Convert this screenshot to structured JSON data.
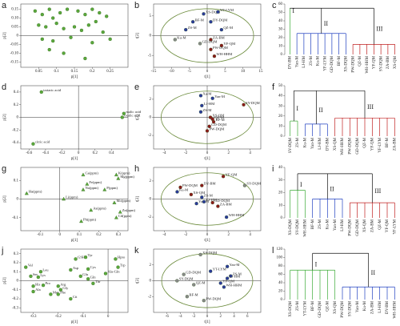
{
  "chart_data": [
    {
      "type": "scatter",
      "panel": "a",
      "xlabel": "p[1]",
      "ylabel": "p[2]",
      "xlim": [
        0,
        0.3
      ],
      "ylim": [
        -0.18,
        0.18
      ],
      "xticks": [
        0.05,
        0.1,
        0.15,
        0.2,
        0.25
      ],
      "yticks": [
        {
          "value": 0.15,
          "label": "0.15"
        },
        {
          "value": 0.1,
          "label": "0.10"
        },
        {
          "value": 0.05,
          "label": "0.05"
        },
        0,
        {
          "value": -0.05,
          "label": "-0.05"
        },
        {
          "value": -0.1,
          "label": "-0.10"
        },
        {
          "value": -0.15,
          "label": "-0.15"
        }
      ],
      "zero_lines": true,
      "marker": "circle",
      "color": "#5aa83c",
      "x": [
        0.04,
        0.06,
        0.08,
        0.09,
        0.11,
        0.13,
        0.16,
        0.18,
        0.2,
        0.22,
        0.24,
        0.05,
        0.07,
        0.1,
        0.12,
        0.15,
        0.17,
        0.19,
        0.21,
        0.23,
        0.06,
        0.09,
        0.14,
        0.2,
        0.25,
        0.08,
        0.12,
        0.18
      ],
      "values": [
        0.14,
        0.12,
        0.15,
        0.1,
        0.13,
        0.15,
        0.14,
        0.12,
        0.15,
        0.13,
        0.11,
        0.06,
        0.05,
        0.07,
        0.04,
        0.05,
        0.03,
        0.06,
        0.08,
        0.02,
        -0.02,
        -0.03,
        -0.01,
        -0.04,
        -0.02,
        -0.08,
        -0.1,
        -0.13
      ]
    },
    {
      "type": "scatter",
      "panel": "b",
      "xlabel": "t[1]",
      "ylabel": "t[2]",
      "xlim": [
        -15,
        15
      ],
      "ylim": [
        -8,
        8
      ],
      "xticks": [
        -15,
        -10,
        -5,
        0,
        5,
        10,
        15
      ],
      "yticks": [
        5,
        0,
        -5
      ],
      "zero_lines": true,
      "marker": "circle",
      "ellipse_radii": [
        13,
        6.8
      ],
      "labels": [
        "XS-DQM",
        "YF-LYM",
        "BF-M",
        "DY-DQM",
        "ZS-M",
        "QZ-M",
        "Ku-M",
        "ZA-BM",
        "YF-QM",
        "PW-DQM",
        "WH-HHM",
        "GD-DQM"
      ],
      "x": [
        -1,
        3,
        -4,
        1,
        -6,
        4,
        -9,
        1,
        4,
        1,
        2,
        -2
      ],
      "values": [
        5.5,
        6,
        3.5,
        3.5,
        1.5,
        1.5,
        -1,
        -1,
        -2.5,
        -3.5,
        -5.2,
        -2
      ],
      "point_colors": [
        "#2b3a9a",
        "#2b3a9a",
        "#2b3a9a",
        "#2b3a9a",
        "#2b3a9a",
        "#2b3a9a",
        "#888888",
        "#8b1a1a",
        "#8b1a1a",
        "#8b1a1a",
        "#8b1a1a",
        "#888888"
      ]
    },
    {
      "type": "dendrogram",
      "panel": "c",
      "ylim": [
        0,
        60
      ],
      "yticks": [
        0,
        10,
        20,
        30,
        40,
        50,
        60
      ],
      "root_height": 55,
      "leaves": [
        "DY-BM",
        "Yan-M",
        "LJ-HM",
        "ZS-M",
        "Ku-M",
        "YF-LYM",
        "GD-DQM",
        "BF-M",
        "XS-DQM",
        "PW-DQM",
        "QZ-M",
        "WH-HHM",
        "YF-QM",
        "SY-DQM",
        "ZA-BM",
        "XS-QM"
      ],
      "clusters": [
        {
          "label": "I",
          "color": "#3aaa35",
          "start": 0,
          "end": 0,
          "inner_height": 55
        },
        {
          "label": "II",
          "color": "#2040c0",
          "start": 1,
          "end": 8,
          "inner_height": 25
        },
        {
          "label": "III",
          "color": "#c02020",
          "start": 9,
          "end": 15,
          "inner_height": 12
        }
      ]
    },
    {
      "type": "scatter",
      "panel": "d",
      "xlabel": "p[1]",
      "ylabel": "p[2]",
      "xlim": [
        -0.7,
        0.6
      ],
      "ylim": [
        -0.5,
        0.5
      ],
      "xticks": [
        -0.6,
        -0.4,
        -0.2,
        0,
        0.2,
        0.4
      ],
      "yticks": [
        0.4,
        0.2,
        0,
        -0.2,
        -0.4
      ],
      "zero_lines": true,
      "marker": "circle",
      "color": "#5aa83c",
      "labels": [
        "tartaric acid",
        "malic acid",
        "oxalic acid",
        "citric acid"
      ],
      "x": [
        -0.45,
        0.55,
        0.53,
        -0.55
      ],
      "values": [
        0.4,
        0.06,
        0.0,
        -0.42
      ]
    },
    {
      "type": "scatter",
      "panel": "e",
      "xlabel": "t[1]",
      "ylabel": "t[2]",
      "xlim": [
        -5,
        5
      ],
      "ylim": [
        -3.5,
        3.5
      ],
      "xticks": [
        -4,
        -2,
        0,
        2,
        4
      ],
      "yticks": [
        2,
        0,
        -2
      ],
      "zero_lines": true,
      "marker": "circle",
      "ellipse_radii": [
        4.3,
        2.9
      ],
      "labels": [
        "Xa-M",
        "Yan-M",
        "LJ-HM",
        "ZS-M",
        "SY-DQM",
        "XS-QM",
        "BF-M",
        "GD-DQM",
        "PW-DQM",
        "QZ-M"
      ],
      "x": [
        -0.6,
        0.5,
        -0.5,
        -0.6,
        3.4,
        0.3,
        0.6,
        0.2,
        0,
        0.5
      ],
      "values": [
        2.4,
        2.1,
        1.3,
        0.6,
        1.4,
        0,
        -0.5,
        -1,
        -1.5,
        -0.2
      ],
      "point_colors": [
        "#2b3a9a",
        "#2b3a9a",
        "#2b3a9a",
        "#2b3a9a",
        "#8b1a1a",
        "#8b1a1a",
        "#8b1a1a",
        "#8b1a1a",
        "#8b1a1a",
        "#8b1a1a"
      ]
    },
    {
      "type": "dendrogram",
      "panel": "f",
      "ylim": [
        0,
        50
      ],
      "yticks": [
        0,
        10,
        20,
        30,
        40,
        50
      ],
      "root_height": 45,
      "leaves": [
        "SY-DQM",
        "ZS-M",
        "Ku-M",
        "Yan-M",
        "LJ-HM",
        "DY-BM",
        "XS-QM",
        "WH-HHM",
        "PW-DQM",
        "GD-DQM",
        "QZ-M",
        "YF-QM",
        "YF-LYM",
        "BF-M",
        "ZA-BM"
      ],
      "clusters": [
        {
          "label": "I",
          "color": "#3aaa35",
          "start": 0,
          "end": 1,
          "inner_height": 15
        },
        {
          "label": "II",
          "color": "#2040c0",
          "start": 2,
          "end": 5,
          "inner_height": 12
        },
        {
          "label": "III",
          "color": "#c02020",
          "start": 6,
          "end": 14,
          "inner_height": 18
        }
      ]
    },
    {
      "type": "scatter",
      "panel": "g",
      "xlabel": "p[1]",
      "ylabel": "p[2]",
      "xlim": [
        -0.2,
        0.35
      ],
      "ylim": [
        -0.17,
        0.17
      ],
      "xticks": [
        -0.1,
        0,
        0.1,
        0.2,
        0.3
      ],
      "yticks": [
        0.1,
        0,
        -0.1
      ],
      "zero_lines": true,
      "marker": "triangle",
      "color": "#5aa83c",
      "labels": [
        "Ca(ppm)",
        "K(ppm)",
        "Mg(ppm)",
        "Fe(ppm)",
        "Na(ppm)",
        "P(ppm)",
        "Ha(ppm)",
        "Li(ppm)",
        "Mo(ppm)",
        "As(ppm)",
        "Zn(ppm)",
        "Cd(ppm)",
        "Pb(ppm)"
      ],
      "x": [
        0.12,
        0.29,
        0.3,
        0.14,
        0.12,
        0.23,
        -0.17,
        0.02,
        0.28,
        0.16,
        0.31,
        0.29,
        0.11
      ],
      "values": [
        0.13,
        0.13,
        0.11,
        0.08,
        0.05,
        0.05,
        0.03,
        0.0,
        -0.02,
        -0.06,
        -0.07,
        -0.1,
        -0.12
      ]
    },
    {
      "type": "scatter",
      "panel": "h",
      "xlabel": "t[1]",
      "ylabel": "t[2]",
      "xlim": [
        -5,
        5
      ],
      "ylim": [
        -3.5,
        3.5
      ],
      "xticks": [
        -4,
        -2,
        0,
        2,
        4
      ],
      "yticks": [
        2,
        0,
        -2
      ],
      "zero_lines": true,
      "marker": "circle",
      "ellipse_radii": [
        4.3,
        2.9
      ],
      "labels": [
        "YF-QM",
        "SY-DQM",
        "PW-DQM",
        "DY-BM",
        "XS-QM",
        "Ku-M",
        "ZS-M",
        "Yan-M",
        "LJ-HM",
        "GD-DQM",
        "ZA-BM",
        "WH-HHM"
      ],
      "x": [
        1.5,
        3.5,
        -2.5,
        -0.5,
        -1.5,
        -2.8,
        -0.5,
        -1,
        -0.3,
        0.5,
        1,
        1.8
      ],
      "values": [
        2.5,
        1.5,
        1.3,
        1.5,
        0.5,
        0.8,
        0.2,
        -0.5,
        -0.3,
        -0.4,
        -0.8,
        -2
      ],
      "point_colors": [
        "#8b1a1a",
        "#888888",
        "#8b1a1a",
        "#8b1a1a",
        "#8b1a1a",
        "#2b3a9a",
        "#2b3a9a",
        "#2b3a9a",
        "#2b3a9a",
        "#8b1a1a",
        "#8b1a1a",
        "#2b3a9a"
      ]
    },
    {
      "type": "dendrogram",
      "panel": "i",
      "ylim": [
        0,
        40
      ],
      "yticks": [
        0,
        10,
        20,
        30,
        40
      ],
      "root_height": 35,
      "leaves": [
        "XS-DQM",
        "SY-DQM",
        "WH-HHM",
        "BF-M",
        "ZS-M",
        "Ku-M",
        "Yan-M",
        "LJ-HM",
        "PW-DQM",
        "GD-DQM",
        "XS-QM",
        "ZA-BM",
        "QZ-M",
        "YF-QM",
        "YF-LYM"
      ],
      "clusters": [
        {
          "label": "I",
          "color": "#3aaa35",
          "start": 0,
          "end": 2,
          "inner_height": 22
        },
        {
          "label": "II",
          "color": "#2040c0",
          "start": 3,
          "end": 7,
          "inner_height": 15
        },
        {
          "label": "III",
          "color": "#c02020",
          "start": 8,
          "end": 14,
          "inner_height": 12
        }
      ]
    },
    {
      "type": "scatter",
      "panel": "j",
      "xlabel": "p[1]",
      "ylabel": "p[2]",
      "xlim": [
        -0.35,
        0.08
      ],
      "ylim": [
        -0.35,
        0.35
      ],
      "xticks": [
        -0.3,
        -0.2,
        -0.1,
        0
      ],
      "yticks": [
        0.3,
        0.2,
        0.1,
        0,
        -0.1,
        -0.2,
        -0.3
      ],
      "zero_lines": true,
      "marker": "circle",
      "color": "#5aa83c",
      "labels": [
        "Val",
        "Leu",
        "GSH",
        "Tyr",
        "Hpro",
        "Trp",
        "Asp",
        "Cys",
        "Ala-Gln",
        "Glu",
        "Ser",
        "Lys",
        "Pro",
        "His",
        "Ala",
        "Arg",
        "Gly",
        "Thr",
        "Cit",
        "Gln",
        "Met",
        "Phe"
      ],
      "x": [
        -0.33,
        -0.27,
        -0.13,
        -0.09,
        0.03,
        0.04,
        -0.15,
        -0.08,
        -0.01,
        -0.11,
        -0.31,
        -0.28,
        -0.26,
        -0.3,
        -0.3,
        -0.2,
        -0.19,
        -0.06,
        -0.15,
        -0.08,
        -0.23,
        -0.2
      ],
      "values": [
        0.15,
        0.1,
        0.24,
        0.26,
        0.24,
        0.15,
        0.12,
        0.13,
        0.08,
        0.05,
        0.05,
        0.04,
        -0.05,
        -0.06,
        -0.12,
        -0.06,
        -0.1,
        -0.03,
        -0.2,
        0.02,
        -0.15,
        -0.15
      ]
    },
    {
      "type": "scatter",
      "panel": "k",
      "xlabel": "t[1]",
      "ylabel": "t[2]",
      "xlim": [
        -8,
        8
      ],
      "ylim": [
        -4,
        4
      ],
      "xticks": [
        -6,
        -4,
        -2,
        0,
        2,
        4,
        6
      ],
      "yticks": [
        2,
        0,
        -2
      ],
      "zero_lines": true,
      "marker": "circle",
      "ellipse_radii": [
        6.8,
        3.4
      ],
      "labels": [
        "XS-DQM",
        "Yan-M",
        "YT-LYM",
        "ZS-M",
        "LJ-HM",
        "GD-DQM",
        "SY-DQM",
        "WH-HHM",
        "YF-QM",
        "QZ-M",
        "BF-M",
        "PW-DQM"
      ],
      "x": [
        -1,
        3,
        0.5,
        3.5,
        3,
        -3.5,
        -4.5,
        2.5,
        2,
        -2,
        -3,
        -0.5
      ],
      "values": [
        3.3,
        1.8,
        1.2,
        0.6,
        0.3,
        0.8,
        0,
        -0.8,
        -0.3,
        -0.5,
        -2,
        -2.5
      ],
      "point_colors": [
        "#888888",
        "#2b3a9a",
        "#2b3a9a",
        "#2b3a9a",
        "#2b3a9a",
        "#888888",
        "#888888",
        "#2b3a9a",
        "#2b3a9a",
        "#888888",
        "#888888",
        "#888888"
      ]
    },
    {
      "type": "dendrogram",
      "panel": "l",
      "ylim": [
        0,
        120
      ],
      "yticks": [
        0,
        20,
        40,
        60,
        80,
        100,
        120
      ],
      "root_height": 110,
      "leaves": [
        "XS-DQM",
        "ZS-M",
        "YT-LYM",
        "BF-M",
        "GD-DQM",
        "QZ-M",
        "XS-QM",
        "PW-DQM",
        "SY-DQM",
        "Yan-M",
        "Ku-M",
        "ZA-BM",
        "LJ-HM",
        "DY-BM",
        "WH-HHM"
      ],
      "clusters": [
        {
          "label": "I",
          "color": "#3aaa35",
          "start": 0,
          "end": 6,
          "inner_height": 70
        },
        {
          "label": "II",
          "color": "#2040c0",
          "start": 7,
          "end": 14,
          "inner_height": 30
        }
      ]
    }
  ]
}
